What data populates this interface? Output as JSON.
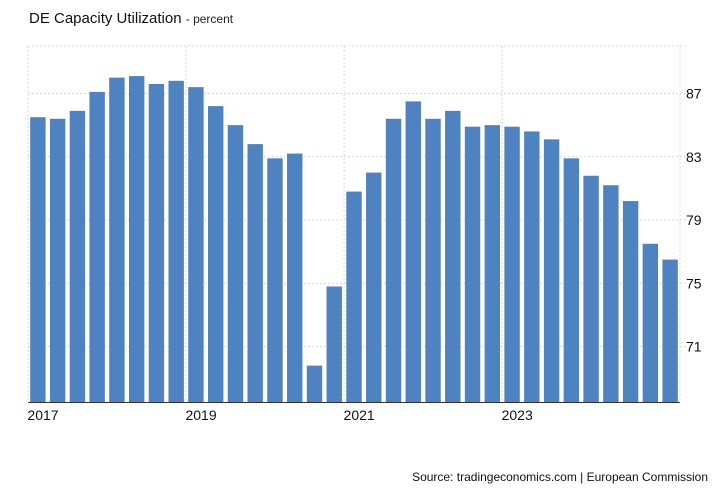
{
  "chart_data": {
    "type": "bar",
    "title": "DE Capacity Utilization",
    "unit": "- percent",
    "source": "Source: tradingeconomics.com | European Commission",
    "x": [
      "2017-Q1",
      "2017-Q2",
      "2017-Q3",
      "2017-Q4",
      "2018-Q1",
      "2018-Q2",
      "2018-Q3",
      "2018-Q4",
      "2019-Q1",
      "2019-Q2",
      "2019-Q3",
      "2019-Q4",
      "2020-Q1",
      "2020-Q2",
      "2020-Q3",
      "2020-Q4",
      "2021-Q1",
      "2021-Q2",
      "2021-Q3",
      "2021-Q4",
      "2022-Q1",
      "2022-Q2",
      "2022-Q3",
      "2022-Q4",
      "2023-Q1",
      "2023-Q2",
      "2023-Q3",
      "2023-Q4",
      "2024-Q1",
      "2024-Q2",
      "2024-Q3",
      "2024-Q4",
      "2025-Q1"
    ],
    "values": [
      85.5,
      85.4,
      85.9,
      87.1,
      88.0,
      88.1,
      87.6,
      87.8,
      87.4,
      86.2,
      85.0,
      83.8,
      82.9,
      83.2,
      69.8,
      74.8,
      80.8,
      82.0,
      85.4,
      86.5,
      85.4,
      85.9,
      84.9,
      85.0,
      84.9,
      84.6,
      84.1,
      82.9,
      81.8,
      81.2,
      80.2,
      77.5,
      76.5
    ],
    "x_tick_labels": [
      "2017",
      "2019",
      "2021",
      "2023"
    ],
    "y_tick_labels": [
      "71",
      "75",
      "79",
      "83",
      "87"
    ],
    "ylim": [
      67.5,
      90
    ],
    "bar_color": "#4f82c0",
    "grid": true,
    "y_axis_side": "right"
  }
}
